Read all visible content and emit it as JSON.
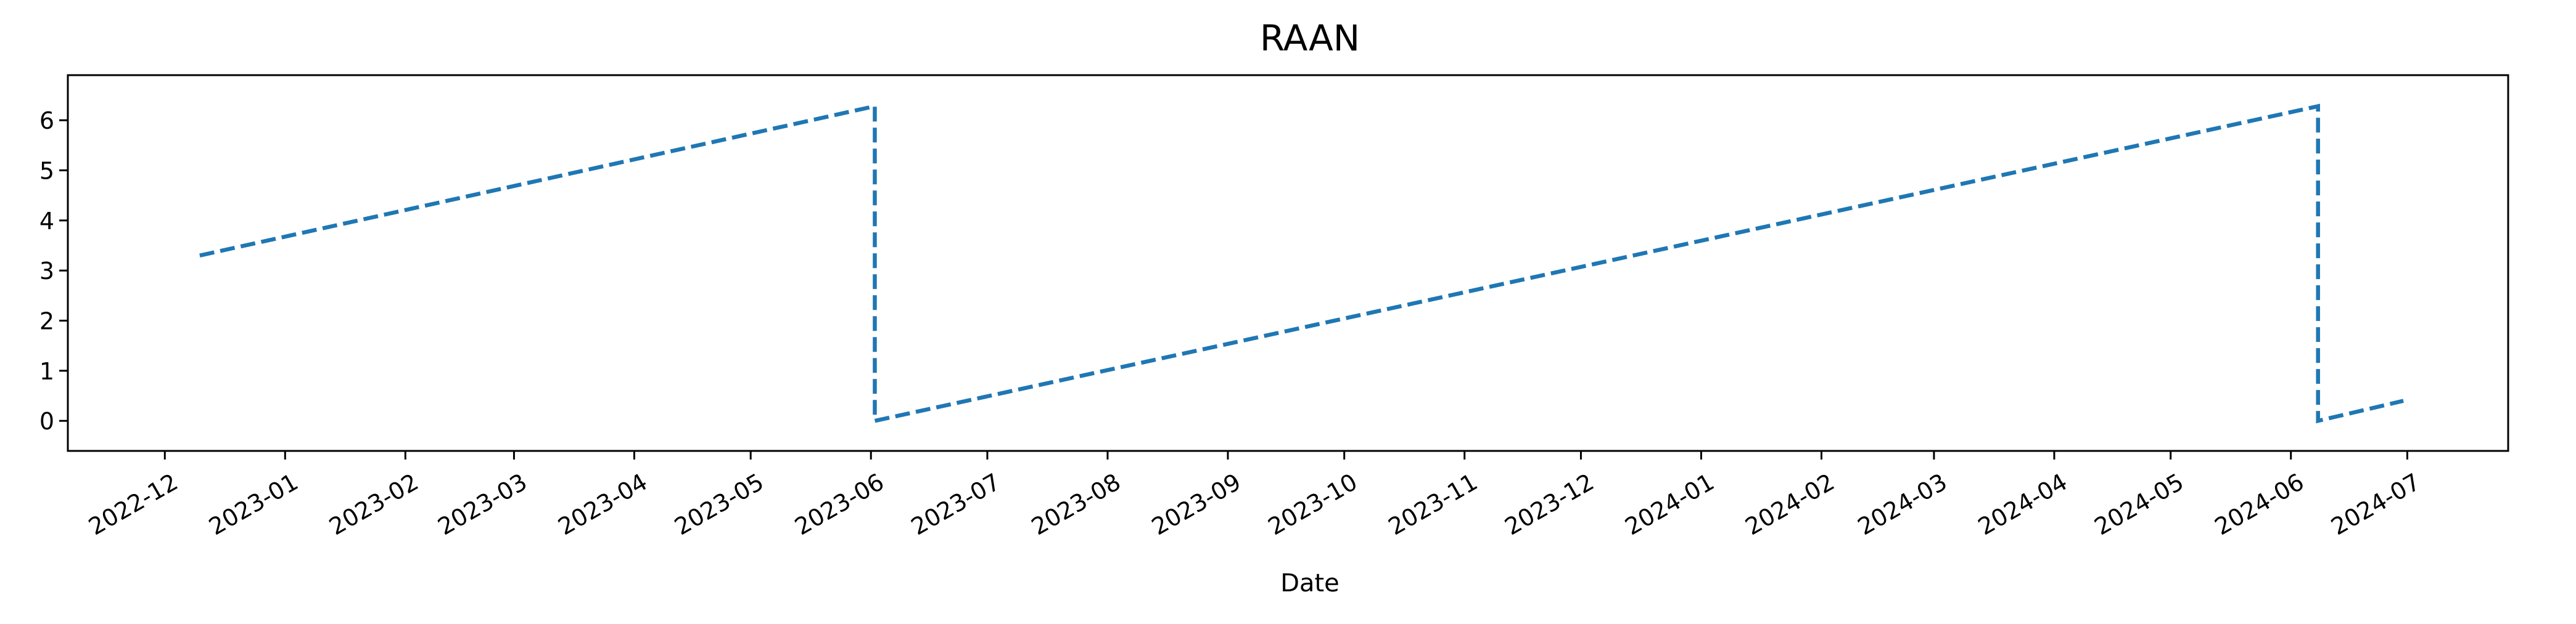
{
  "chart_data": {
    "type": "line",
    "title": "RAAN",
    "xlabel": "Date",
    "ylabel": "",
    "xlim": [
      "2022-11-06",
      "2024-07-27"
    ],
    "ylim": [
      -0.6,
      6.9
    ],
    "grid": false,
    "xticks": [
      "2022-12",
      "2023-01",
      "2023-02",
      "2023-03",
      "2023-04",
      "2023-05",
      "2023-06",
      "2023-07",
      "2023-08",
      "2023-09",
      "2023-10",
      "2023-11",
      "2023-12",
      "2024-01",
      "2024-02",
      "2024-03",
      "2024-04",
      "2024-05",
      "2024-06",
      "2024-07"
    ],
    "yticks": [
      0,
      1,
      2,
      3,
      4,
      5,
      6
    ],
    "series": [
      {
        "color": "#1f77b4",
        "style": "dashed",
        "points": [
          {
            "x": "2022-12-10",
            "y": 3.3
          },
          {
            "x": "2023-06-02",
            "y": 6.28
          },
          {
            "x": "2023-06-02",
            "y": 0.0
          },
          {
            "x": "2024-06-08",
            "y": 6.28
          },
          {
            "x": "2024-06-08",
            "y": 0.0
          },
          {
            "x": "2024-06-30",
            "y": 0.4
          }
        ]
      }
    ]
  }
}
